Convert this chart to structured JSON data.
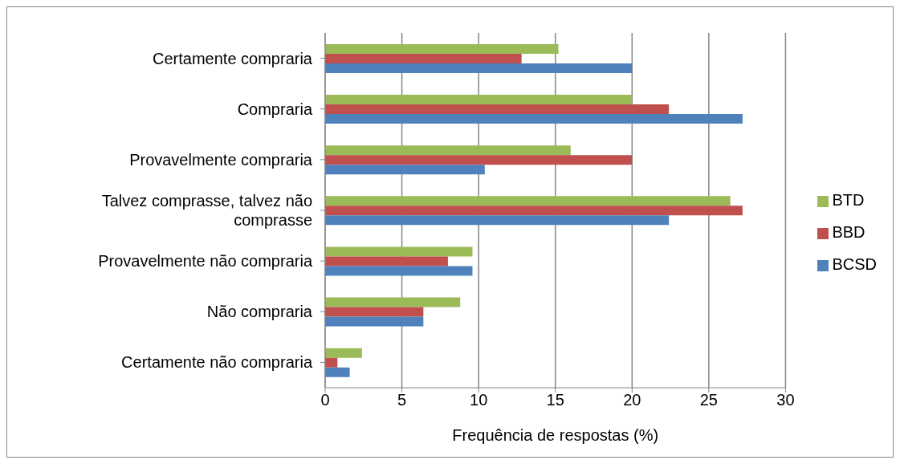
{
  "chart_data": {
    "type": "bar",
    "orientation": "horizontal",
    "categories": [
      "Certamente compraria",
      "Compraria",
      "Provavelmente compraria",
      "Talvez comprasse, talvez não comprasse",
      "Provavelmente não compraria",
      "Não compraria",
      "Certamente não compraria"
    ],
    "series": [
      {
        "name": "BTD",
        "color": "#9bbb59",
        "values": [
          15.2,
          20,
          16,
          26.4,
          9.6,
          8.8,
          2.4
        ]
      },
      {
        "name": "BBD",
        "color": "#c0504d",
        "values": [
          12.8,
          22.4,
          20,
          27.2,
          8,
          6.4,
          0.8
        ]
      },
      {
        "name": "BCSD",
        "color": "#4f81bd",
        "values": [
          20,
          27.2,
          10.4,
          22.4,
          9.6,
          6.4,
          1.6
        ]
      }
    ],
    "xlabel": "Frequência de respostas (%)",
    "xlim": [
      0,
      30
    ],
    "xticks": [
      0,
      5,
      10,
      15,
      20,
      25,
      30
    ],
    "grid": "x",
    "legend": "right"
  }
}
